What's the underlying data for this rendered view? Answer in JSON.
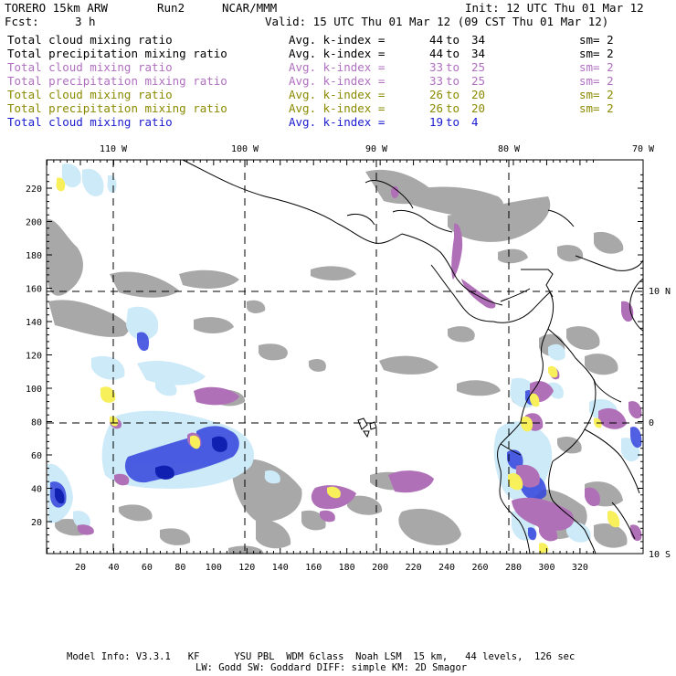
{
  "header": {
    "model": "TORERO 15km ARW",
    "run": "Run2",
    "center": "NCAR/MMM",
    "init": "Init: 12 UTC Thu 01 Mar 12",
    "fcst_label": "Fcst:",
    "fcst_value": "3 h",
    "valid": "Valid: 15 UTC Thu 01 Mar 12 (09 CST Thu 01 Mar 12)"
  },
  "legend": [
    {
      "field": "Total cloud mixing ratio",
      "kindex": "Avg. k-index =",
      "from": "44",
      "to_word": "to",
      "to": "34",
      "sm": "sm= 2",
      "color": "#000000"
    },
    {
      "field": "Total precipitation mixing ratio",
      "kindex": "Avg. k-index =",
      "from": "44",
      "to_word": "to",
      "to": "34",
      "sm": "sm= 2",
      "color": "#000000"
    },
    {
      "field": "Total cloud mixing ratio",
      "kindex": "Avg. k-index =",
      "from": "33",
      "to_word": "to",
      "to": "25",
      "sm": "sm= 2",
      "color": "#b070c0"
    },
    {
      "field": "Total precipitation mixing ratio",
      "kindex": "Avg. k-index =",
      "from": "33",
      "to_word": "to",
      "to": "25",
      "sm": "sm= 2",
      "color": "#b070c0"
    },
    {
      "field": "Total cloud mixing ratio",
      "kindex": "Avg. k-index =",
      "from": "26",
      "to_word": "to",
      "to": "20",
      "sm": "sm= 2",
      "color": "#8a8a00"
    },
    {
      "field": "Total precipitation mixing ratio",
      "kindex": "Avg. k-index =",
      "from": "26",
      "to_word": "to",
      "to": "20",
      "sm": "sm= 2",
      "color": "#8a8a00"
    },
    {
      "field": "Total cloud mixing ratio",
      "kindex": "Avg. k-index =",
      "from": "19",
      "to_word": "to",
      "to": "4",
      "sm": "",
      "color": "#1a1ad0"
    }
  ],
  "map": {
    "lon_labels": [
      "110 W",
      "100 W",
      "90 W",
      "80 W",
      "70 W"
    ],
    "lat_labels": [
      "10 N",
      "0",
      "10 S"
    ],
    "grid_x_ticks": [
      "20",
      "40",
      "60",
      "80",
      "100",
      "120",
      "140",
      "160",
      "180",
      "200",
      "220",
      "240",
      "260",
      "280",
      "300",
      "320"
    ],
    "grid_y_ticks": [
      "220",
      "200",
      "180",
      "160",
      "140",
      "120",
      "100",
      "80",
      "60",
      "40",
      "20"
    ],
    "colors": {
      "gray_cloud": "#a8a8a8",
      "light_blue": "#cdeaf8",
      "blue": "#3344dd",
      "dark_blue": "#1020b0",
      "purple": "#b070b8",
      "yellow": "#f7f05a",
      "coast": "#000000"
    }
  },
  "footer": {
    "line1": "Model Info: V3.3.1   KF      YSU PBL  WDM 6class  Noah LSM  15 km,   44 levels,  126 sec",
    "line2": "LW: Godd SW: Goddard DIFF: simple KM: 2D Smagor"
  }
}
